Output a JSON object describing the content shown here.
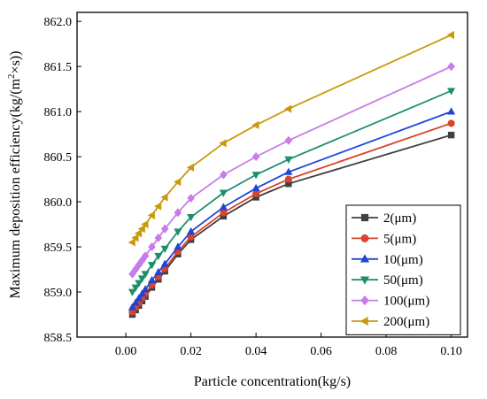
{
  "chart_data": {
    "type": "line",
    "xlabel": "Particle concentration(kg/s)",
    "ylabel_parts": [
      "Maximum deposition efficiency(kg/(m",
      "2",
      "×s))"
    ],
    "xlim": [
      -0.015,
      0.105
    ],
    "ylim": [
      858.5,
      862.1
    ],
    "xticks": [
      0.0,
      0.02,
      0.04,
      0.06,
      0.08,
      0.1
    ],
    "xtick_labels": [
      "0.00",
      "0.02",
      "0.04",
      "0.06",
      "0.08",
      "0.10"
    ],
    "yticks": [
      858.5,
      859.0,
      859.5,
      860.0,
      860.5,
      861.0,
      861.5,
      862.0
    ],
    "ytick_labels": [
      "858.5",
      "859.0",
      "859.5",
      "860.0",
      "860.5",
      "861.0",
      "861.5",
      "862.0"
    ],
    "grid": false,
    "legend_position": "bottom-right",
    "x": [
      0.002,
      0.003,
      0.004,
      0.005,
      0.006,
      0.008,
      0.01,
      0.012,
      0.016,
      0.02,
      0.03,
      0.04,
      0.05,
      0.1
    ],
    "series": [
      {
        "name": "2(μm)",
        "color": "#404040",
        "marker": "square",
        "values": [
          858.75,
          858.8,
          858.85,
          858.9,
          858.95,
          859.05,
          859.14,
          859.23,
          859.42,
          859.58,
          859.84,
          860.05,
          860.2,
          860.74
        ]
      },
      {
        "name": "5(μm)",
        "color": "#d9442c",
        "marker": "circle",
        "values": [
          858.78,
          858.83,
          858.88,
          858.93,
          858.98,
          859.08,
          859.17,
          859.26,
          859.45,
          859.61,
          859.88,
          860.09,
          860.25,
          860.87
        ]
      },
      {
        "name": "10(μm)",
        "color": "#1f45d6",
        "marker": "triangle-up",
        "values": [
          858.83,
          858.88,
          858.93,
          858.98,
          859.03,
          859.13,
          859.22,
          859.31,
          859.5,
          859.67,
          859.94,
          860.15,
          860.33,
          861.0
        ]
      },
      {
        "name": "50(μm)",
        "color": "#1f8f6b",
        "marker": "triangle-down",
        "values": [
          859.0,
          859.05,
          859.1,
          859.15,
          859.2,
          859.3,
          859.4,
          859.48,
          859.67,
          859.83,
          860.1,
          860.3,
          860.47,
          861.23
        ]
      },
      {
        "name": "100(μm)",
        "color": "#c77ce8",
        "marker": "diamond",
        "values": [
          859.2,
          859.25,
          859.3,
          859.35,
          859.4,
          859.5,
          859.6,
          859.7,
          859.88,
          860.04,
          860.3,
          860.5,
          860.68,
          861.5
        ]
      },
      {
        "name": "200(μm)",
        "color": "#c99a0e",
        "marker": "triangle-left",
        "values": [
          859.55,
          859.6,
          859.65,
          859.7,
          859.75,
          859.85,
          859.95,
          860.05,
          860.22,
          860.38,
          860.65,
          860.85,
          861.03,
          861.85
        ]
      }
    ]
  }
}
